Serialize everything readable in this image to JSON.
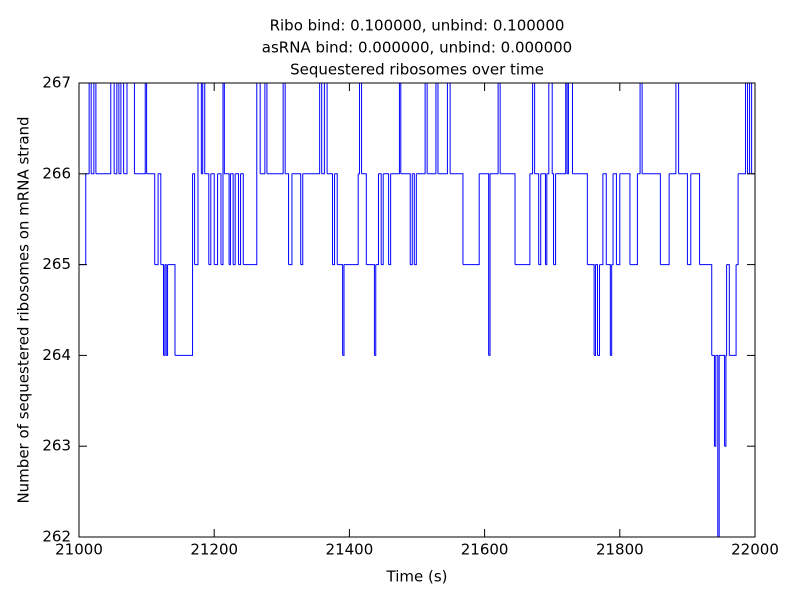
{
  "chart_data": {
    "type": "step",
    "title": [
      "Ribo bind: 0.100000, unbind: 0.100000",
      "asRNA bind: 0.000000, unbind: 0.000000",
      "Sequestered ribosomes over time"
    ],
    "xlabel": "Time (s)",
    "ylabel": "Number of sequestered ribosomes on mRNA strand",
    "x": [
      21000,
      21010,
      21015,
      21018,
      21022,
      21025,
      21047,
      21052,
      21056,
      21059,
      21062,
      21066,
      21071,
      21082,
      21098,
      21100,
      21112,
      21117,
      21121,
      21125,
      21127,
      21129,
      21131,
      21142,
      21168,
      21171,
      21176,
      21181,
      21183,
      21186,
      21192,
      21195,
      21200,
      21205,
      21210,
      21213,
      21215,
      21222,
      21224,
      21228,
      21231,
      21236,
      21239,
      21243,
      21263,
      21268,
      21275,
      21278,
      21302,
      21305,
      21310,
      21315,
      21328,
      21331,
      21356,
      21359,
      21363,
      21367,
      21375,
      21378,
      21382,
      21390,
      21392,
      21413,
      21415,
      21418,
      21425,
      21437,
      21439,
      21443,
      21447,
      21450,
      21458,
      21461,
      21474,
      21476,
      21490,
      21493,
      21496,
      21499,
      21512,
      21515,
      21528,
      21531,
      21545,
      21549,
      21568,
      21592,
      21606,
      21608,
      21620,
      21623,
      21645,
      21667,
      21671,
      21674,
      21680,
      21683,
      21690,
      21692,
      21695,
      21700,
      21702,
      21705,
      21720,
      21722,
      21724,
      21730,
      21752,
      21762,
      21764,
      21767,
      21770,
      21775,
      21780,
      21786,
      21788,
      21790,
      21795,
      21800,
      21815,
      21826,
      21830,
      21833,
      21860,
      21873,
      21883,
      21887,
      21900,
      21905,
      21918,
      21936,
      21940,
      21942,
      21945,
      21947,
      21955,
      21957,
      21958,
      21962,
      21972,
      21975,
      21986,
      21989,
      21992,
      21995,
      22000
    ],
    "series": [
      {
        "name": "ribosomes",
        "color": "#0000ff",
        "values": [
          265,
          266,
          267,
          266,
          267,
          266,
          267,
          266,
          267,
          266,
          267,
          266,
          267,
          266,
          267,
          266,
          265,
          266,
          265,
          264,
          265,
          264,
          265,
          264,
          266,
          265,
          267,
          266,
          267,
          266,
          265,
          266,
          265,
          266,
          265,
          267,
          266,
          265,
          266,
          265,
          266,
          265,
          266,
          265,
          267,
          266,
          267,
          266,
          267,
          266,
          265,
          266,
          265,
          266,
          267,
          266,
          267,
          266,
          265,
          266,
          265,
          264,
          265,
          266,
          267,
          266,
          265,
          264,
          265,
          266,
          265,
          266,
          265,
          266,
          267,
          266,
          265,
          266,
          265,
          266,
          267,
          266,
          267,
          266,
          267,
          266,
          265,
          266,
          264,
          266,
          267,
          266,
          265,
          266,
          267,
          266,
          265,
          266,
          265,
          266,
          267,
          266,
          265,
          266,
          267,
          266,
          267,
          266,
          265,
          264,
          265,
          264,
          265,
          266,
          265,
          264,
          265,
          266,
          265,
          266,
          265,
          266,
          267,
          266,
          265,
          266,
          267,
          266,
          265,
          266,
          265,
          264,
          263,
          264,
          262,
          264,
          263,
          264,
          265,
          264,
          265,
          266,
          267,
          266,
          267,
          266,
          266
        ]
      }
    ],
    "xlim": [
      21000,
      22000
    ],
    "xticks": [
      21000,
      21200,
      21400,
      21600,
      21800,
      22000
    ],
    "ylim": [
      262,
      267
    ],
    "yticks": [
      262,
      263,
      264,
      265,
      266,
      267
    ]
  }
}
